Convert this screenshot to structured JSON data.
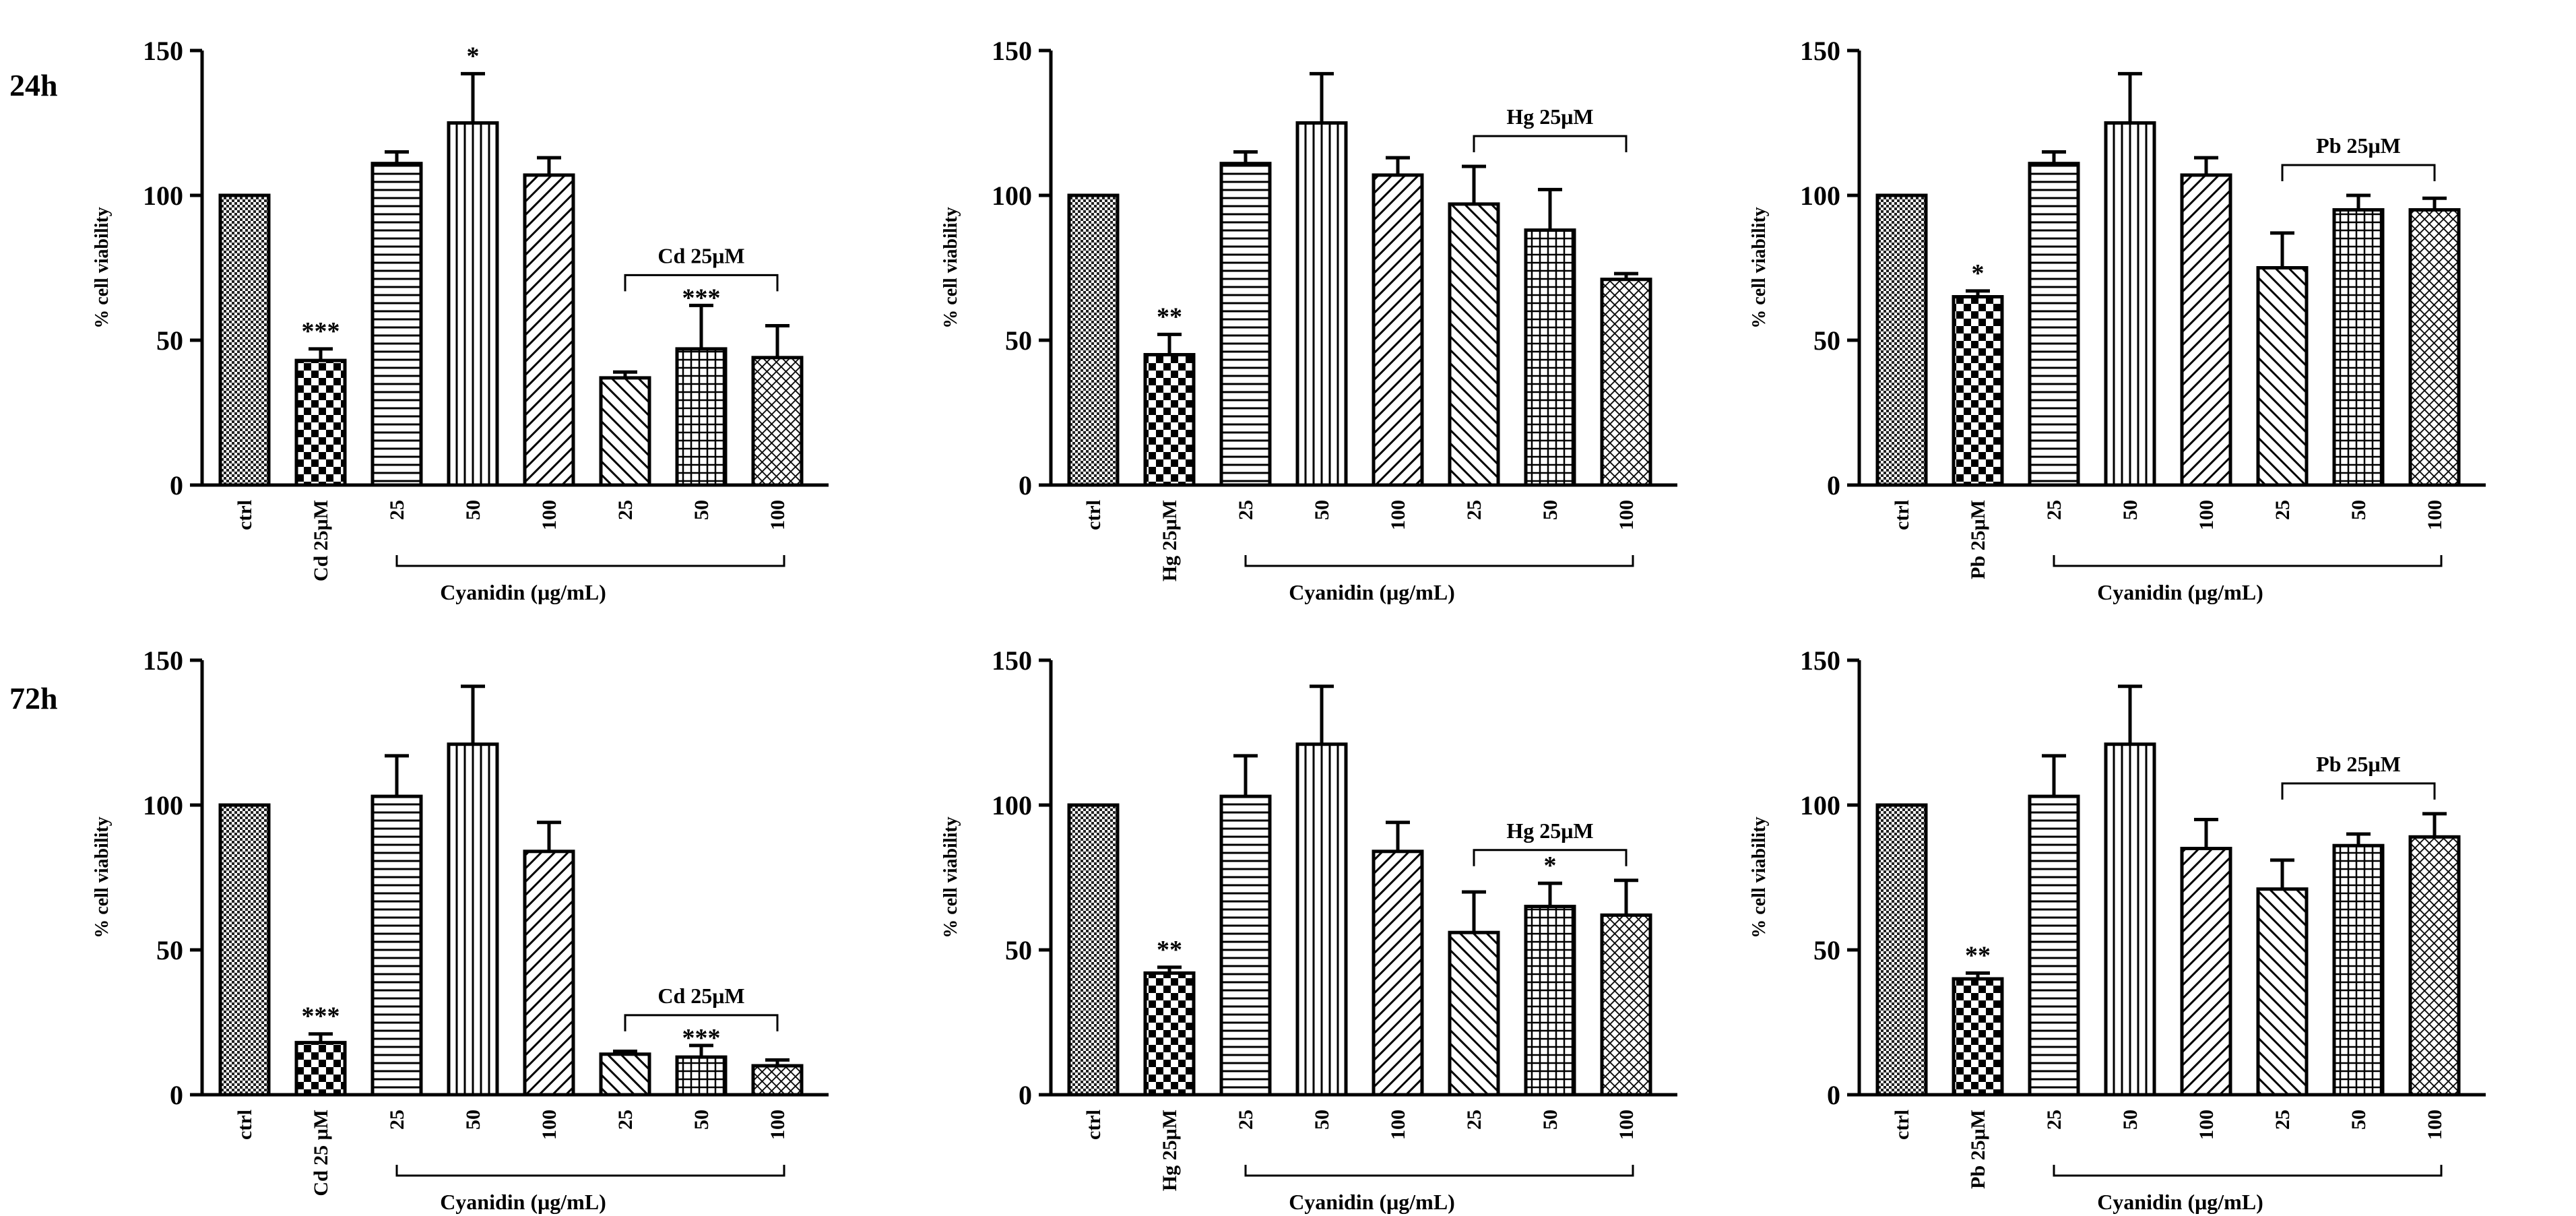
{
  "row_labels": [
    "24h",
    "72h"
  ],
  "chart_data": [
    {
      "type": "bar",
      "row": 0,
      "col": 0,
      "time": "24h",
      "title": "",
      "xlabel": "Cyanidin (μg/mL)",
      "ylabel": "% cell viability",
      "ylim": [
        0,
        150
      ],
      "yticks": [
        0,
        50,
        100,
        150
      ],
      "categories": [
        "ctrl",
        "Cd 25μM",
        "25",
        "50",
        "100",
        "25",
        "50",
        "100"
      ],
      "values": [
        100,
        43,
        111,
        125,
        107,
        37,
        47,
        44
      ],
      "errors": [
        0,
        4,
        4,
        17,
        6,
        2,
        15,
        11
      ],
      "patterns": [
        "dense",
        "check",
        "hlines",
        "vlines",
        "diag-r",
        "diag-l",
        "grid",
        "cross"
      ],
      "significance": [
        "",
        "***",
        "",
        "*",
        "",
        "",
        "",
        ""
      ],
      "bracket": {
        "label": "Cd 25μM",
        "from": 5,
        "to": 7,
        "sig": "***"
      },
      "cyanidin_range": [
        2,
        7
      ]
    },
    {
      "type": "bar",
      "row": 0,
      "col": 1,
      "time": "24h",
      "title": "",
      "xlabel": "Cyanidin (μg/mL)",
      "ylabel": "% cell viability",
      "ylim": [
        0,
        150
      ],
      "yticks": [
        0,
        50,
        100,
        150
      ],
      "categories": [
        "ctrl",
        "Hg 25μM",
        "25",
        "50",
        "100",
        "25",
        "50",
        "100"
      ],
      "values": [
        100,
        45,
        111,
        125,
        107,
        97,
        88,
        71
      ],
      "errors": [
        0,
        7,
        4,
        17,
        6,
        13,
        14,
        2
      ],
      "patterns": [
        "dense",
        "check",
        "hlines",
        "vlines",
        "diag-r",
        "diag-l",
        "grid",
        "cross"
      ],
      "significance": [
        "",
        "**",
        "",
        "",
        "",
        "",
        "",
        ""
      ],
      "bracket": {
        "label": "Hg 25μM",
        "from": 5,
        "to": 7,
        "sig": ""
      },
      "cyanidin_range": [
        2,
        7
      ]
    },
    {
      "type": "bar",
      "row": 0,
      "col": 2,
      "time": "24h",
      "title": "",
      "xlabel": "Cyanidin (μg/mL)",
      "ylabel": "% cell viability",
      "ylim": [
        0,
        150
      ],
      "yticks": [
        0,
        50,
        100,
        150
      ],
      "categories": [
        "ctrl",
        "Pb 25μM",
        "25",
        "50",
        "100",
        "25",
        "50",
        "100"
      ],
      "values": [
        100,
        65,
        111,
        125,
        107,
        75,
        95,
        95
      ],
      "errors": [
        0,
        2,
        4,
        17,
        6,
        12,
        5,
        4
      ],
      "patterns": [
        "dense",
        "check",
        "hlines",
        "vlines",
        "diag-r",
        "diag-l",
        "grid",
        "cross"
      ],
      "significance": [
        "",
        "*",
        "",
        "",
        "",
        "",
        "",
        ""
      ],
      "bracket": {
        "label": "Pb 25μM",
        "from": 5,
        "to": 7,
        "sig": ""
      },
      "cyanidin_range": [
        2,
        7
      ]
    },
    {
      "type": "bar",
      "row": 1,
      "col": 0,
      "time": "72h",
      "title": "",
      "xlabel": "Cyanidin (μg/mL)",
      "ylabel": "% cell viability",
      "ylim": [
        0,
        150
      ],
      "yticks": [
        0,
        50,
        100,
        150
      ],
      "categories": [
        "ctrl",
        "Cd 25 μM",
        "25",
        "50",
        "100",
        "25",
        "50",
        "100"
      ],
      "values": [
        100,
        18,
        103,
        121,
        84,
        14,
        13,
        10
      ],
      "errors": [
        0,
        3,
        14,
        20,
        10,
        1,
        4,
        2
      ],
      "patterns": [
        "dense",
        "check",
        "hlines",
        "vlines",
        "diag-r",
        "diag-l",
        "grid",
        "cross"
      ],
      "significance": [
        "",
        "***",
        "",
        "",
        "",
        "",
        "",
        ""
      ],
      "bracket": {
        "label": "Cd 25μM",
        "from": 5,
        "to": 7,
        "sig": "***"
      },
      "cyanidin_range": [
        2,
        7
      ]
    },
    {
      "type": "bar",
      "row": 1,
      "col": 1,
      "time": "72h",
      "title": "",
      "xlabel": "Cyanidin (μg/mL)",
      "ylabel": "% cell viability",
      "ylim": [
        0,
        150
      ],
      "yticks": [
        0,
        50,
        100,
        150
      ],
      "categories": [
        "ctrl",
        "Hg 25μM",
        "25",
        "50",
        "100",
        "25",
        "50",
        "100"
      ],
      "values": [
        100,
        42,
        103,
        121,
        84,
        56,
        65,
        62
      ],
      "errors": [
        0,
        2,
        14,
        20,
        10,
        14,
        8,
        12
      ],
      "patterns": [
        "dense",
        "check",
        "hlines",
        "vlines",
        "diag-r",
        "diag-l",
        "grid",
        "cross"
      ],
      "significance": [
        "",
        "**",
        "",
        "",
        "",
        "",
        "*",
        ""
      ],
      "bracket": {
        "label": "Hg 25μM",
        "from": 5,
        "to": 7,
        "sig": ""
      },
      "cyanidin_range": [
        2,
        7
      ]
    },
    {
      "type": "bar",
      "row": 1,
      "col": 2,
      "time": "72h",
      "title": "",
      "xlabel": "Cyanidin (μg/mL)",
      "ylabel": "% cell viability",
      "ylim": [
        0,
        150
      ],
      "yticks": [
        0,
        50,
        100,
        150
      ],
      "categories": [
        "ctrl",
        "Pb 25μM",
        "25",
        "50",
        "100",
        "25",
        "50",
        "100"
      ],
      "values": [
        100,
        40,
        103,
        121,
        85,
        71,
        86,
        89
      ],
      "errors": [
        0,
        2,
        14,
        20,
        10,
        10,
        4,
        8
      ],
      "patterns": [
        "dense",
        "check",
        "hlines",
        "vlines",
        "diag-r",
        "diag-l",
        "grid",
        "cross"
      ],
      "significance": [
        "",
        "**",
        "",
        "",
        "",
        "",
        "",
        ""
      ],
      "bracket": {
        "label": "Pb 25μM",
        "from": 5,
        "to": 7,
        "sig": ""
      },
      "cyanidin_range": [
        2,
        7
      ]
    }
  ]
}
